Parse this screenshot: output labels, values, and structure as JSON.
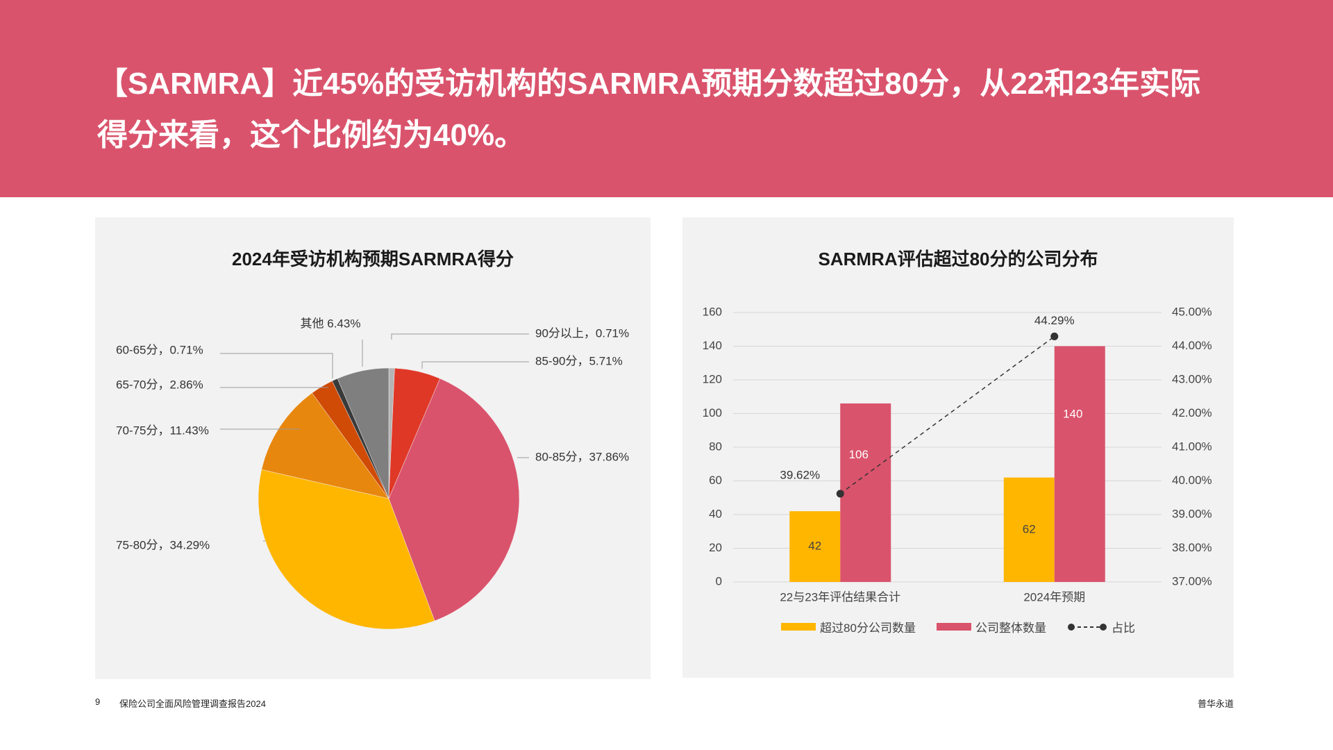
{
  "header": {
    "line1": "【SARMRA】近45%的受访机构的SARMRA预期分数超过80分，从22和23年实际",
    "line2": "得分来看，这个比例约为40%。"
  },
  "colors": {
    "banner": "#da536c",
    "yellow": "#ffb600",
    "pink": "#da536c",
    "red": "#e03827",
    "orange": "#e8870e",
    "dark_orange": "#d04b06",
    "dark_gray": "#3a3a3a",
    "gray": "#7f7f7f",
    "light_gray": "#b5b5b5"
  },
  "chart_data": [
    {
      "type": "pie",
      "title": "2024年受访机构预期SARMRA得分",
      "slices": [
        {
          "label": "90分以上，0.71%",
          "value": 0.71,
          "color": "#b5b5b5",
          "side": "right"
        },
        {
          "label": "85-90分，5.71%",
          "value": 5.71,
          "color": "#e03827",
          "side": "right"
        },
        {
          "label": "80-85分，37.86%",
          "value": 37.86,
          "color": "#da536c",
          "side": "right"
        },
        {
          "label": "75-80分，34.29%",
          "value": 34.29,
          "color": "#ffb600",
          "side": "left"
        },
        {
          "label": "70-75分，11.43%",
          "value": 11.43,
          "color": "#e8870e",
          "side": "left"
        },
        {
          "label": "65-70分，2.86%",
          "value": 2.86,
          "color": "#d04b06",
          "side": "left"
        },
        {
          "label": "60-65分，0.71%",
          "value": 0.71,
          "color": "#3a3a3a",
          "side": "left"
        },
        {
          "label": "其他 6.43%",
          "value": 6.43,
          "color": "#7f7f7f",
          "side": "top"
        }
      ]
    },
    {
      "type": "bar",
      "title": "SARMRA评估超过80分的公司分布",
      "categories": [
        "22与23年评估结果合计",
        "2024年预期"
      ],
      "series": [
        {
          "name": "超过80分公司数量",
          "values": [
            42,
            62
          ],
          "color": "#ffb600"
        },
        {
          "name": "公司整体数量",
          "values": [
            106,
            140
          ],
          "color": "#da536c"
        }
      ],
      "line_series": {
        "name": "占比",
        "values": [
          39.62,
          44.29
        ],
        "labels": [
          "39.62%",
          "44.29%"
        ],
        "style": "dashed"
      },
      "y_left": {
        "min": 0,
        "max": 160,
        "ticks": [
          "0",
          "20",
          "40",
          "60",
          "80",
          "100",
          "120",
          "140",
          "160"
        ]
      },
      "y_right": {
        "min": 37,
        "max": 45,
        "ticks": [
          "37.00%",
          "38.00%",
          "39.00%",
          "40.00%",
          "41.00%",
          "42.00%",
          "43.00%",
          "44.00%",
          "45.00%"
        ]
      },
      "grid": true,
      "legend": "bottom"
    }
  ],
  "footer": {
    "page": "9",
    "report": "保险公司全面风险管理调查报告2024",
    "brand": "普华永道"
  }
}
